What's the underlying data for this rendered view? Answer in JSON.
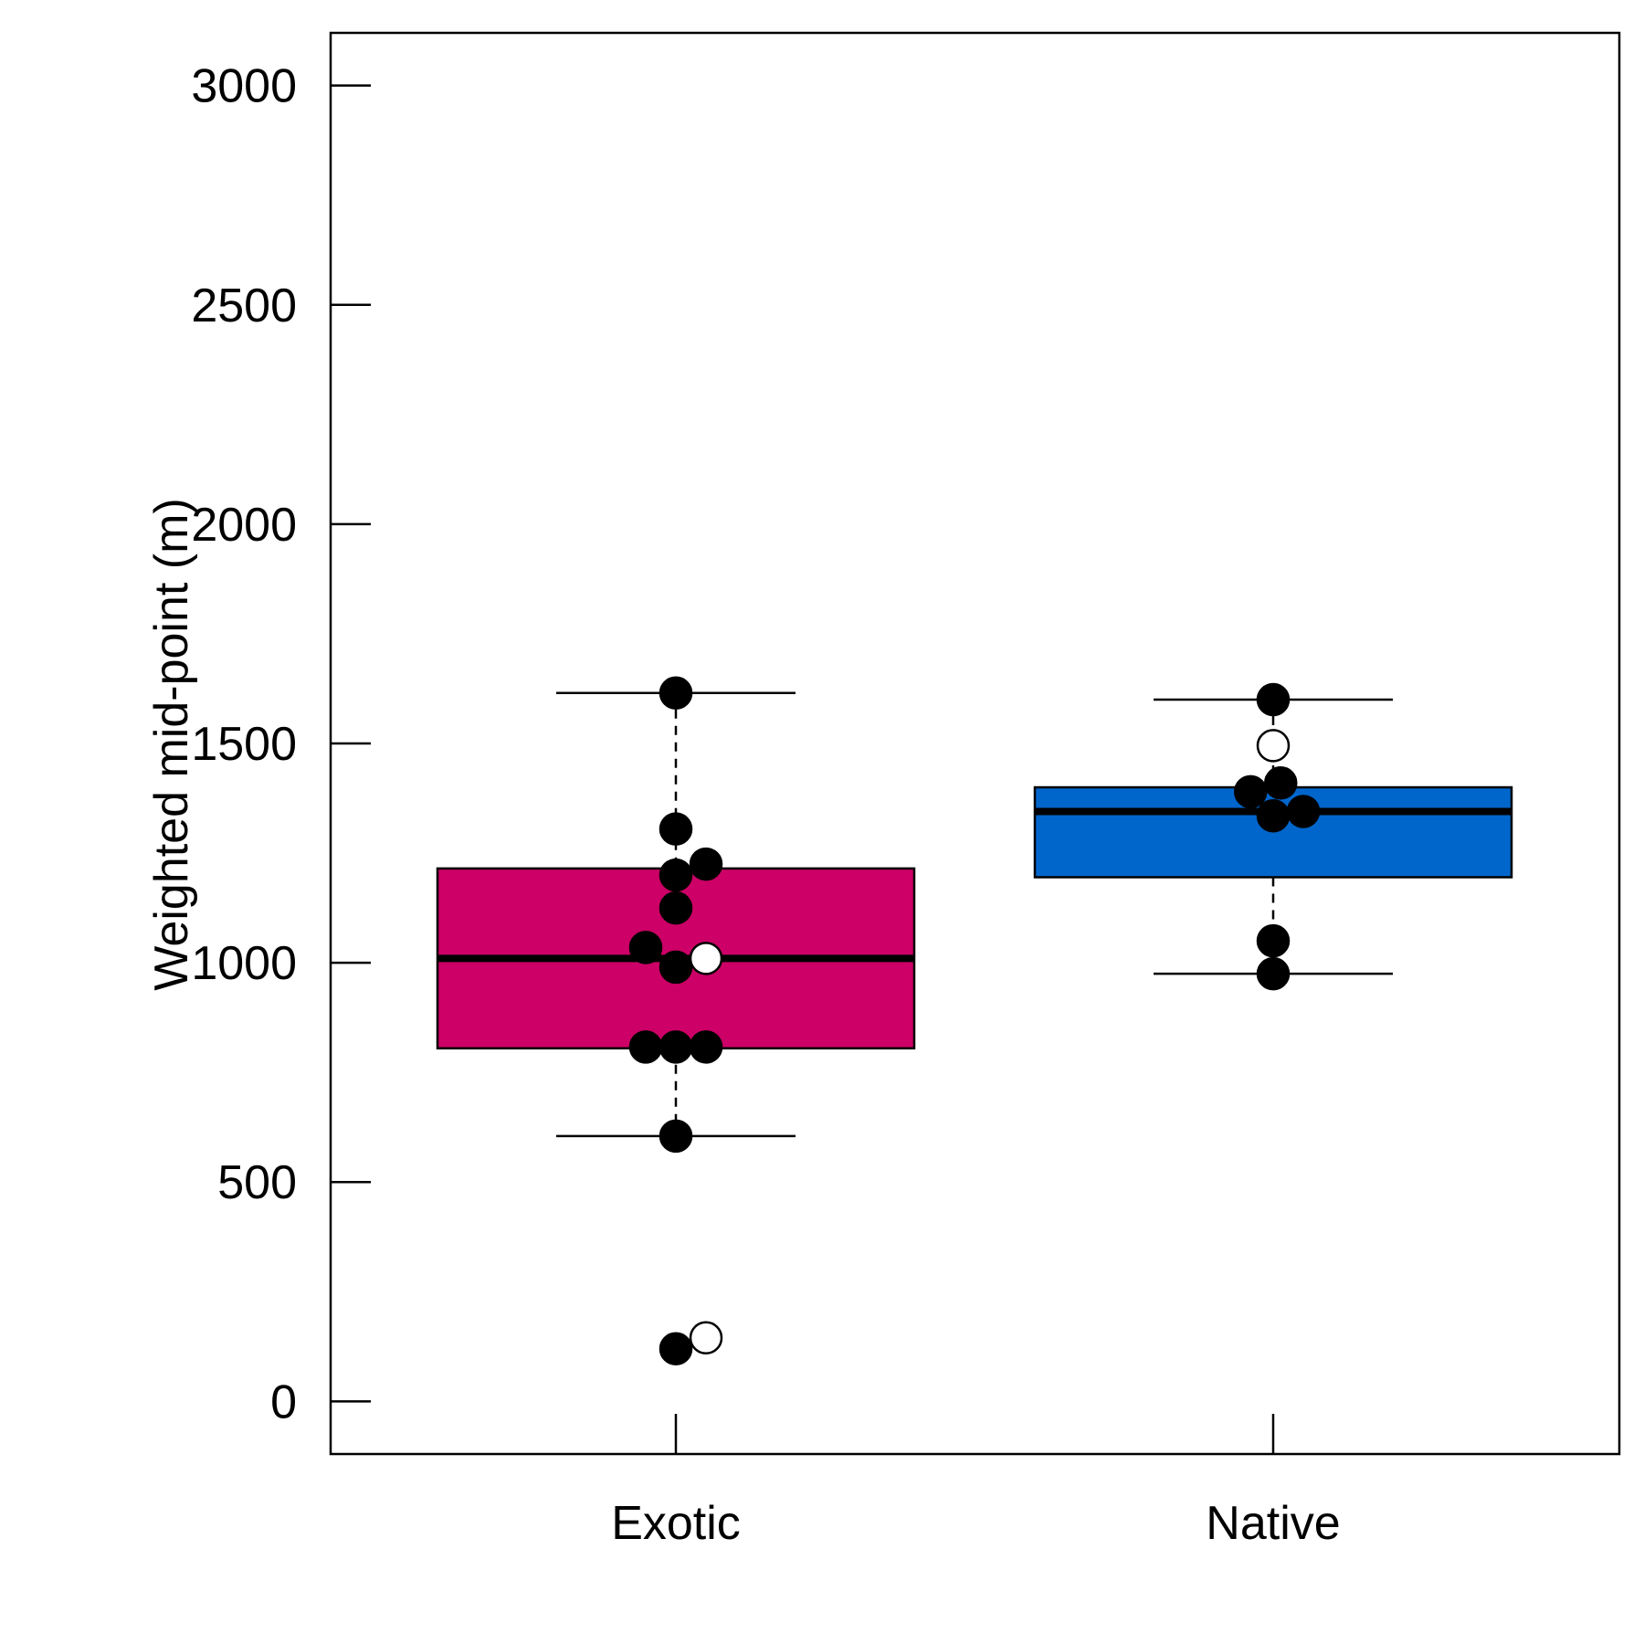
{
  "chart_data": {
    "type": "box",
    "ylabel": "Weighted mid-point (m)",
    "xlabel": "",
    "ylim": [
      -120,
      3120
    ],
    "yticks": [
      0,
      500,
      1000,
      1500,
      2000,
      2500,
      3000
    ],
    "categories": [
      "Exotic",
      "Native"
    ],
    "groups": [
      {
        "name": "Exotic",
        "color": "#CC0066",
        "whisker_low": 605,
        "q1": 805,
        "median": 1010,
        "q3": 1215,
        "whisker_high": 1615,
        "points": [
          {
            "dx": 0,
            "y": 1615,
            "fill": "black"
          },
          {
            "dx": 0,
            "y": 1305,
            "fill": "black"
          },
          {
            "dx": 1,
            "y": 1225,
            "fill": "black"
          },
          {
            "dx": 0,
            "y": 1200,
            "fill": "black"
          },
          {
            "dx": 0,
            "y": 1125,
            "fill": "black"
          },
          {
            "dx": -1,
            "y": 1035,
            "fill": "black"
          },
          {
            "dx": 1,
            "y": 1010,
            "fill": "white"
          },
          {
            "dx": 0,
            "y": 990,
            "fill": "black"
          },
          {
            "dx": -1,
            "y": 808,
            "fill": "black"
          },
          {
            "dx": 0,
            "y": 808,
            "fill": "black"
          },
          {
            "dx": 1,
            "y": 808,
            "fill": "black"
          },
          {
            "dx": 0,
            "y": 605,
            "fill": "black"
          },
          {
            "dx": 1,
            "y": 145,
            "fill": "white"
          },
          {
            "dx": 0,
            "y": 120,
            "fill": "black"
          }
        ]
      },
      {
        "name": "Native",
        "color": "#0066CC",
        "whisker_low": 975,
        "q1": 1195,
        "median": 1345,
        "q3": 1400,
        "whisker_high": 1600,
        "points": [
          {
            "dx": 0,
            "y": 1600,
            "fill": "black"
          },
          {
            "dx": 0,
            "y": 1495,
            "fill": "white"
          },
          {
            "dx": 0.25,
            "y": 1410,
            "fill": "black"
          },
          {
            "dx": -0.75,
            "y": 1390,
            "fill": "black"
          },
          {
            "dx": 1,
            "y": 1345,
            "fill": "black"
          },
          {
            "dx": 0,
            "y": 1335,
            "fill": "black"
          },
          {
            "dx": 0,
            "y": 1050,
            "fill": "black"
          },
          {
            "dx": 0,
            "y": 975,
            "fill": "black"
          }
        ]
      }
    ]
  }
}
